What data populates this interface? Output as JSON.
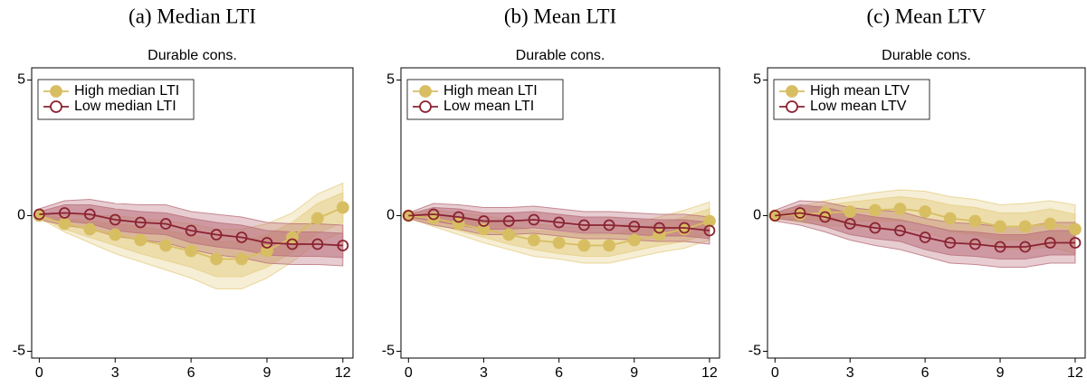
{
  "chart_data": [
    {
      "type": "line",
      "title": "(a) Median LTI",
      "subtitle": "Durable cons.",
      "x": [
        0,
        1,
        2,
        3,
        4,
        5,
        6,
        7,
        8,
        9,
        10,
        11,
        12
      ],
      "xlim": [
        -0.3,
        12.4
      ],
      "xticks": [
        0,
        3,
        6,
        9,
        12
      ],
      "ylim": [
        -5.25,
        5.45
      ],
      "yticks": [
        -5,
        0,
        5
      ],
      "legend": "top-left",
      "series": [
        {
          "name": "High median LTI",
          "color": "#d8be63",
          "band_color": "#e6cf86",
          "marker": "filled",
          "values": [
            0,
            -0.3,
            -0.5,
            -0.7,
            -0.9,
            -1.1,
            -1.3,
            -1.6,
            -1.6,
            -1.3,
            -0.8,
            -0.1,
            0.3
          ],
          "ci_inner": [
            0.05,
            0.2,
            0.3,
            0.4,
            0.5,
            0.55,
            0.6,
            0.65,
            0.65,
            0.6,
            0.55,
            0.55,
            0.55
          ],
          "ci_outer": [
            0.1,
            0.3,
            0.5,
            0.7,
            0.8,
            0.9,
            1.0,
            1.1,
            1.1,
            1.0,
            0.9,
            0.9,
            0.9
          ]
        },
        {
          "name": "Low median LTI",
          "color": "#8b2332",
          "band_color": "#b9707b",
          "marker": "hollow",
          "values": [
            0.05,
            0.1,
            0.05,
            -0.15,
            -0.25,
            -0.3,
            -0.55,
            -0.7,
            -0.8,
            -1.0,
            -1.05,
            -1.05,
            -1.1
          ],
          "ci_inner": [
            0.1,
            0.3,
            0.35,
            0.4,
            0.4,
            0.4,
            0.45,
            0.45,
            0.45,
            0.45,
            0.45,
            0.45,
            0.45
          ],
          "ci_outer": [
            0.2,
            0.45,
            0.55,
            0.6,
            0.65,
            0.7,
            0.7,
            0.75,
            0.75,
            0.75,
            0.75,
            0.75,
            0.75
          ]
        }
      ]
    },
    {
      "type": "line",
      "title": "(b) Mean LTI",
      "subtitle": "Durable cons.",
      "x": [
        0,
        1,
        2,
        3,
        4,
        5,
        6,
        7,
        8,
        9,
        10,
        11,
        12
      ],
      "xlim": [
        -0.3,
        12.4
      ],
      "xticks": [
        0,
        3,
        6,
        9,
        12
      ],
      "ylim": [
        -5.25,
        5.45
      ],
      "yticks": [
        -5,
        0,
        5
      ],
      "legend": "top-left",
      "series": [
        {
          "name": "High mean LTI",
          "color": "#d8be63",
          "band_color": "#e6cf86",
          "marker": "filled",
          "values": [
            0,
            -0.1,
            -0.3,
            -0.5,
            -0.7,
            -0.9,
            -1.0,
            -1.1,
            -1.1,
            -0.9,
            -0.7,
            -0.5,
            -0.2
          ],
          "ci_inner": [
            0.05,
            0.2,
            0.25,
            0.3,
            0.35,
            0.35,
            0.4,
            0.4,
            0.4,
            0.4,
            0.4,
            0.45,
            0.45
          ],
          "ci_outer": [
            0.1,
            0.3,
            0.4,
            0.5,
            0.55,
            0.6,
            0.6,
            0.65,
            0.65,
            0.65,
            0.65,
            0.7,
            0.7
          ]
        },
        {
          "name": "Low mean LTI",
          "color": "#8b2332",
          "band_color": "#b9707b",
          "marker": "hollow",
          "values": [
            0,
            0.05,
            -0.05,
            -0.2,
            -0.2,
            -0.15,
            -0.25,
            -0.35,
            -0.35,
            -0.4,
            -0.45,
            -0.45,
            -0.55
          ],
          "ci_inner": [
            0.05,
            0.25,
            0.3,
            0.3,
            0.3,
            0.3,
            0.3,
            0.3,
            0.3,
            0.3,
            0.3,
            0.3,
            0.3
          ],
          "ci_outer": [
            0.1,
            0.4,
            0.45,
            0.5,
            0.5,
            0.5,
            0.5,
            0.5,
            0.5,
            0.5,
            0.5,
            0.5,
            0.5
          ]
        }
      ]
    },
    {
      "type": "line",
      "title": "(c) Mean LTV",
      "subtitle": "Durable cons.",
      "x": [
        0,
        1,
        2,
        3,
        4,
        5,
        6,
        7,
        8,
        9,
        10,
        11,
        12
      ],
      "xlim": [
        -0.3,
        12.4
      ],
      "xticks": [
        0,
        3,
        6,
        9,
        12
      ],
      "ylim": [
        -5.25,
        5.45
      ],
      "yticks": [
        -5,
        0,
        5
      ],
      "legend": "top-left",
      "series": [
        {
          "name": "High mean LTV",
          "color": "#d8be63",
          "band_color": "#e6cf86",
          "marker": "filled",
          "values": [
            0,
            0.05,
            0.1,
            0.15,
            0.2,
            0.25,
            0.15,
            -0.1,
            -0.2,
            -0.4,
            -0.4,
            -0.3,
            -0.5
          ],
          "ci_inner": [
            0.05,
            0.2,
            0.3,
            0.35,
            0.4,
            0.45,
            0.45,
            0.5,
            0.5,
            0.5,
            0.5,
            0.55,
            0.55
          ],
          "ci_outer": [
            0.1,
            0.3,
            0.45,
            0.55,
            0.65,
            0.7,
            0.75,
            0.8,
            0.8,
            0.8,
            0.85,
            0.85,
            0.9
          ]
        },
        {
          "name": "Low mean LTV",
          "color": "#8b2332",
          "band_color": "#b9707b",
          "marker": "hollow",
          "values": [
            0,
            0.1,
            -0.05,
            -0.3,
            -0.45,
            -0.55,
            -0.8,
            -1.0,
            -1.05,
            -1.15,
            -1.15,
            -1.0,
            -1.0
          ],
          "ci_inner": [
            0.1,
            0.3,
            0.35,
            0.4,
            0.4,
            0.4,
            0.45,
            0.45,
            0.45,
            0.45,
            0.45,
            0.45,
            0.45
          ],
          "ci_outer": [
            0.2,
            0.45,
            0.55,
            0.6,
            0.65,
            0.7,
            0.7,
            0.75,
            0.75,
            0.75,
            0.75,
            0.75,
            0.75
          ]
        }
      ]
    }
  ]
}
